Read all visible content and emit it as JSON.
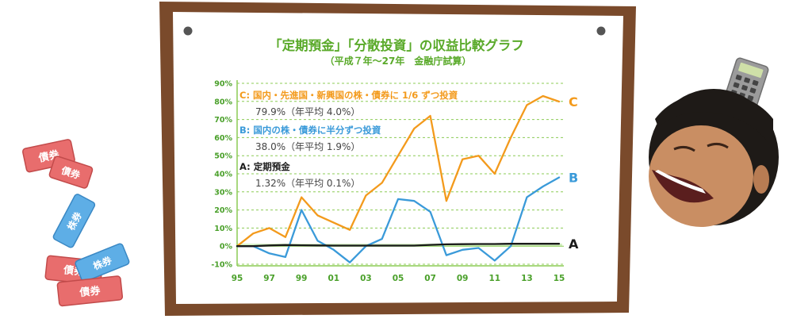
{
  "board": {
    "title": "「定期預金」「分散投資」の収益比較グラフ",
    "subtitle": "（平成７年～27年　金融庁試算）"
  },
  "colors": {
    "frame": "#7a4a2b",
    "paper": "#ffffff",
    "grid": "#8ccc55",
    "title": "#5aaa2a",
    "tick": "#4aa02a",
    "c": "#f39a1c",
    "b": "#3a9ad9",
    "a": "#1a1a1a",
    "fill": "#d8f2c8"
  },
  "decor": {
    "bond_label": "債券",
    "stock_label": "株券"
  },
  "legend": [
    {
      "key": "C",
      "title": "C: 国内・先進国・新興国の株・債券に 1/6 ずつ投資",
      "value": "79.9%（年平均 4.0%）"
    },
    {
      "key": "B",
      "title": "B: 国内の株・債券に半分ずつ投資",
      "value": "38.0%（年平均 1.9%）"
    },
    {
      "key": "A",
      "title": "A: 定期預金",
      "value": "1.32%（年平均 0.1%）"
    }
  ],
  "chart_data": {
    "type": "line",
    "x": [
      1995,
      1996,
      1997,
      1998,
      1999,
      2000,
      2001,
      2002,
      2003,
      2004,
      2005,
      2006,
      2007,
      2008,
      2009,
      2010,
      2011,
      2012,
      2013,
      2014,
      2015
    ],
    "xtick_values": [
      1995,
      1997,
      1999,
      2001,
      2003,
      2005,
      2007,
      2009,
      2011,
      2013,
      2015
    ],
    "xtick_labels": [
      "95",
      "97",
      "99",
      "01",
      "03",
      "05",
      "07",
      "09",
      "11",
      "13",
      "15"
    ],
    "ylim": [
      -10,
      90
    ],
    "ytick_values": [
      -10,
      0,
      10,
      20,
      30,
      40,
      50,
      60,
      70,
      80,
      90
    ],
    "ytick_labels": [
      "-10%",
      "0%",
      "10%",
      "20%",
      "30%",
      "40%",
      "50%",
      "60%",
      "70%",
      "80%",
      "90%"
    ],
    "grid": true,
    "series": [
      {
        "name": "C",
        "values": [
          0,
          7,
          10,
          5,
          27,
          17,
          13,
          9,
          28,
          35,
          50,
          65,
          72,
          25,
          48,
          50,
          40,
          60,
          78,
          83,
          79.9
        ]
      },
      {
        "name": "B",
        "values": [
          0,
          0,
          -4,
          -6,
          20,
          3,
          -2,
          -9,
          0,
          4,
          26,
          25,
          19,
          -5,
          -2,
          -1,
          -8,
          0,
          27,
          33,
          38
        ]
      },
      {
        "name": "A",
        "values": [
          0,
          0,
          0.4,
          0.6,
          0.5,
          0.4,
          0.3,
          0.3,
          0.3,
          0.3,
          0.3,
          0.3,
          0.7,
          1.0,
          1.1,
          1.2,
          1.2,
          1.3,
          1.3,
          1.3,
          1.32
        ]
      }
    ]
  }
}
